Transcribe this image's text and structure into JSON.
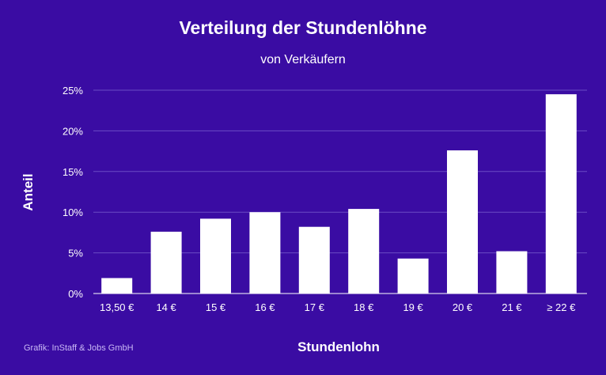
{
  "chart_data": {
    "type": "bar",
    "title": "Verteilung der Stundenlöhne",
    "subtitle": "von Verkäufern",
    "xlabel": "Stundenlohn",
    "ylabel": "Anteil",
    "categories": [
      "13,50 €",
      "14 €",
      "15 €",
      "16 €",
      "17 €",
      "18 €",
      "19 €",
      "20 €",
      "21 €",
      "≥ 22 €"
    ],
    "values": [
      1.9,
      7.6,
      9.2,
      10.0,
      8.2,
      10.4,
      4.3,
      17.6,
      5.2,
      24.5
    ],
    "ylim": [
      0,
      25
    ],
    "yticks": [
      "0%",
      "5%",
      "10%",
      "15%",
      "20%",
      "25%"
    ],
    "grid": true,
    "colors": {
      "background": "#3a0ca3",
      "bar": "#ffffff",
      "grid": "#6a4bc4"
    }
  },
  "credit": "Grafik: InStaff & Jobs GmbH"
}
